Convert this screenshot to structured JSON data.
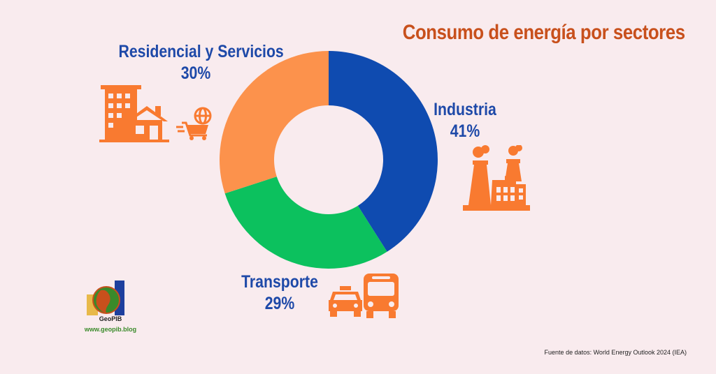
{
  "title": "Consumo de energía por sectores",
  "chart_data": {
    "type": "pie",
    "title": "Consumo de energía por sectores",
    "categories": [
      "Industria",
      "Transporte",
      "Residencial y Servicios"
    ],
    "values": [
      41,
      29,
      30
    ],
    "value_labels": [
      "41%",
      "29%",
      "30%"
    ],
    "colors": [
      "#0f4bb0",
      "#0cc15e",
      "#fc924c"
    ],
    "donut": true,
    "legend": "none"
  },
  "labels": {
    "residencial": {
      "name": "Residencial y Servicios",
      "pct": "30%"
    },
    "industria": {
      "name": "Industria",
      "pct": "41%"
    },
    "transporte": {
      "name": "Transporte",
      "pct": "29%"
    }
  },
  "logo": {
    "name": "GeoPIB",
    "url": "www.geopib.blog"
  },
  "source": "Fuente de datos: World Energy Outlook 2024 (IEA)",
  "icon_color": "#f97a30",
  "icons": [
    "buildings-house-icon",
    "shopping-cart-globe-icon",
    "factory-icon",
    "taxi-icon",
    "bus-icon"
  ]
}
